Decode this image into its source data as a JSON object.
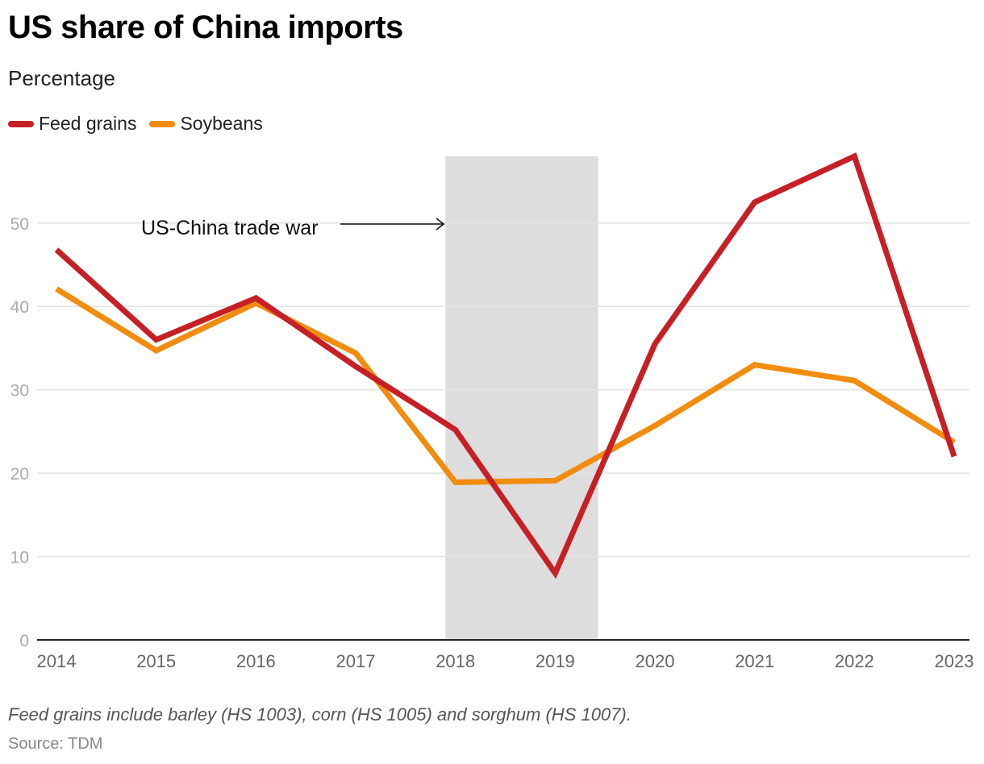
{
  "title": "US share of China imports",
  "subtitle": "Percentage",
  "note": "Feed grains include barley (HS 1003), corn (HS 1005) and sorghum (HS 1007).",
  "source": "Source: TDM",
  "annotation": {
    "text": "US-China trade war",
    "band_start": 2017.9,
    "band_end": 2019.43,
    "band_color": "#dddddd"
  },
  "chart_data": {
    "type": "line",
    "title": "US share of China imports",
    "ylabel": "Percentage",
    "xlabel": "",
    "x": [
      2014,
      2015,
      2016,
      2017,
      2018,
      2019,
      2020,
      2021,
      2022,
      2023
    ],
    "ylim": [
      0,
      58
    ],
    "yticks": [
      0,
      10,
      20,
      30,
      40,
      50
    ],
    "grid": true,
    "legend": "top-left",
    "series": [
      {
        "name": "Feed grains",
        "color": "#c62026",
        "values": [
          46.8,
          36.0,
          41.0,
          32.8,
          25.2,
          8.0,
          35.5,
          52.5,
          58.0,
          22.0
        ]
      },
      {
        "name": "Soybeans",
        "color": "#f28c0f",
        "values": [
          42.1,
          34.7,
          40.4,
          34.4,
          18.9,
          19.1,
          25.7,
          33.0,
          31.1,
          23.7
        ]
      }
    ]
  }
}
